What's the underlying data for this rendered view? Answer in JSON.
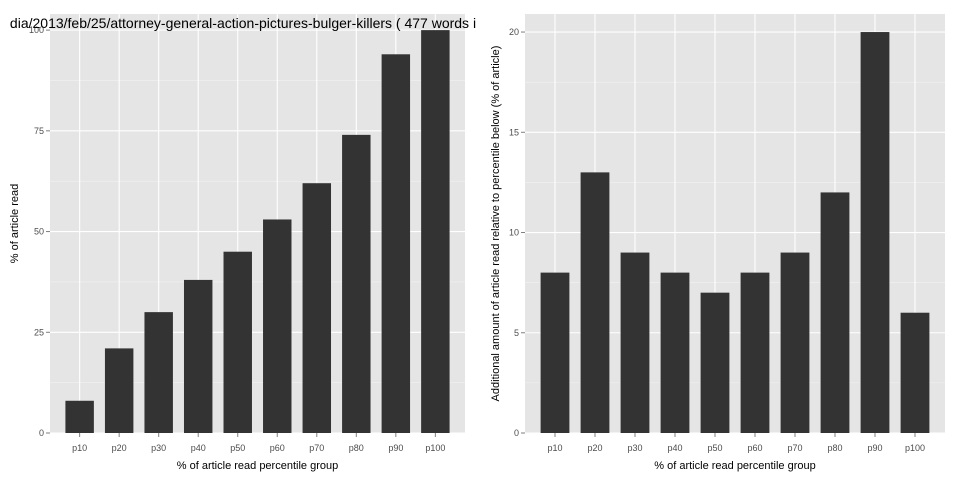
{
  "chart_data": [
    {
      "type": "bar",
      "title": "dia/2013/feb/25/attorney-general-action-pictures-bulger-killers ( 477 words i",
      "categories": [
        "p10",
        "p20",
        "p30",
        "p40",
        "p50",
        "p60",
        "p70",
        "p80",
        "p90",
        "p100"
      ],
      "values": [
        8,
        21,
        30,
        38,
        45,
        53,
        62,
        74,
        94,
        100
      ],
      "xlabel": "% of article read percentile group",
      "ylabel": "% of article read",
      "ylim": [
        0,
        104
      ],
      "yticks": [
        0,
        25,
        50,
        75,
        100
      ],
      "bar_color": "#333333",
      "panel_background": "#e5e5e5",
      "grid": true
    },
    {
      "type": "bar",
      "title": "",
      "categories": [
        "p10",
        "p20",
        "p30",
        "p40",
        "p50",
        "p60",
        "p70",
        "p80",
        "p90",
        "p100"
      ],
      "values": [
        8,
        13,
        9,
        8,
        7,
        8,
        9,
        12,
        20,
        6
      ],
      "xlabel": "% of article read percentile group",
      "ylabel": "Additional amount of article read relative to percentile below (% of article)",
      "ylim": [
        0,
        20.9
      ],
      "yticks": [
        0,
        5,
        10,
        15,
        20
      ],
      "bar_color": "#333333",
      "panel_background": "#e5e5e5",
      "grid": true
    }
  ]
}
